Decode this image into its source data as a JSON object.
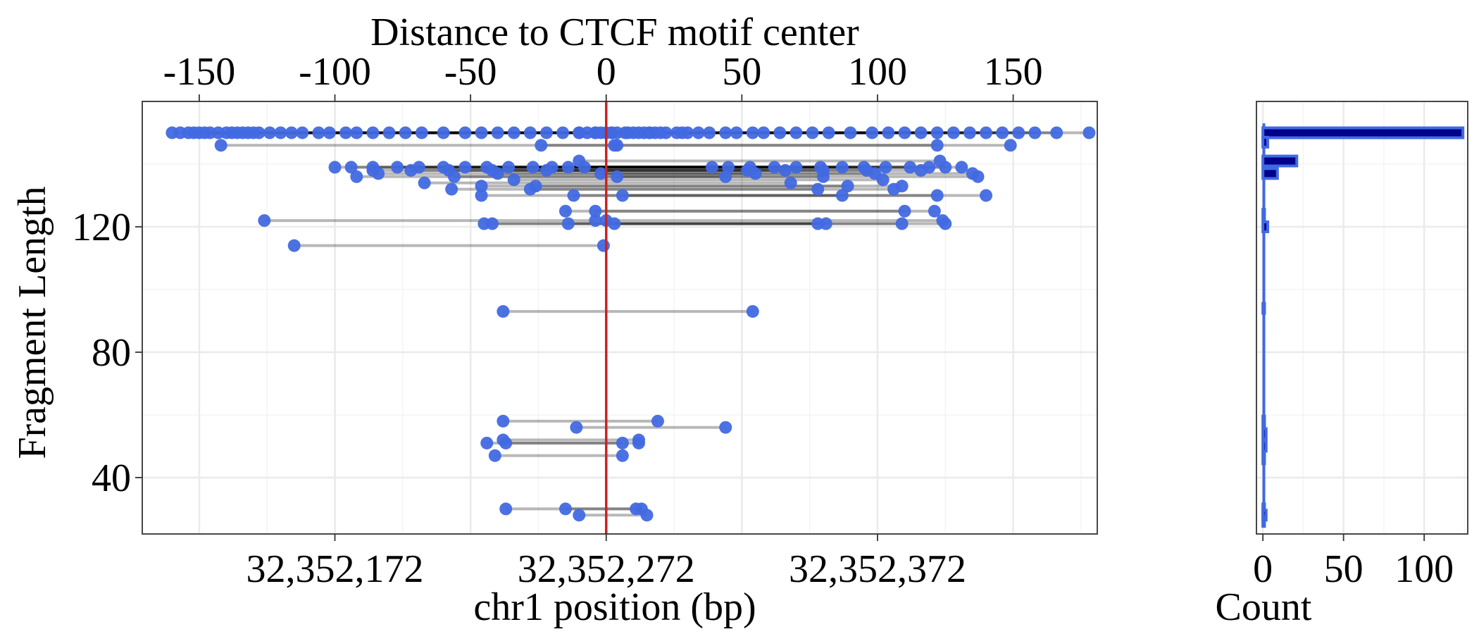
{
  "chart_data": [
    {
      "type": "scatter",
      "top_axis_title": "Distance to CTCF motif center",
      "top_ticks": [
        -150,
        -100,
        -50,
        0,
        50,
        100,
        150
      ],
      "top_tick_labels": [
        "-150",
        "-100",
        "-50",
        "0",
        "50",
        "100",
        "150"
      ],
      "xlabel": "chr1 position (bp)",
      "ylabel": "Fragment Length",
      "x_ticks": [
        32352172,
        32352272,
        32352372
      ],
      "x_tick_labels": [
        "32,352,172",
        "32,352,272",
        "32,352,372"
      ],
      "y_ticks": [
        40,
        80,
        120
      ],
      "y_tick_labels": [
        "40",
        "80",
        "120"
      ],
      "motif_center": 32352272,
      "xlim": [
        32352101,
        32352453
      ],
      "ylim": [
        22,
        160
      ],
      "reference_line_color": "#CC2222",
      "point_color": "#4169E1",
      "grid": true,
      "fragments": [
        [
          32352126,
          32352276,
          150
        ],
        [
          32352129,
          32352279,
          150
        ],
        [
          32352132,
          32352282,
          150
        ],
        [
          32352134,
          32352284,
          150
        ],
        [
          32352136,
          32352286,
          150
        ],
        [
          32352138,
          32352288,
          150
        ],
        [
          32352140,
          32352290,
          150
        ],
        [
          32352142,
          32352292,
          150
        ],
        [
          32352144,
          32352294,
          150
        ],
        [
          32352148,
          32352298,
          150
        ],
        [
          32352152,
          32352302,
          150
        ],
        [
          32352156,
          32352306,
          150
        ],
        [
          32352160,
          32352310,
          150
        ],
        [
          32352166,
          32352316,
          150
        ],
        [
          32352170,
          32352320,
          150
        ],
        [
          32352176,
          32352326,
          150
        ],
        [
          32352180,
          32352330,
          150
        ],
        [
          32352186,
          32352336,
          150
        ],
        [
          32352192,
          32352342,
          150
        ],
        [
          32352198,
          32352348,
          150
        ],
        [
          32352204,
          32352354,
          150
        ],
        [
          32352212,
          32352362,
          150
        ],
        [
          32352220,
          32352370,
          150
        ],
        [
          32352226,
          32352376,
          150
        ],
        [
          32352232,
          32352382,
          150
        ],
        [
          32352238,
          32352388,
          150
        ],
        [
          32352244,
          32352394,
          150
        ],
        [
          32352250,
          32352400,
          150
        ],
        [
          32352256,
          32352406,
          150
        ],
        [
          32352262,
          32352412,
          150
        ],
        [
          32352268,
          32352418,
          150
        ],
        [
          32352274,
          32352424,
          150
        ],
        [
          32352280,
          32352430,
          150
        ],
        [
          32352288,
          32352438,
          150
        ],
        [
          32352300,
          32352450,
          150
        ],
        [
          32352112,
          32352262,
          150
        ],
        [
          32352115,
          32352265,
          150
        ],
        [
          32352118,
          32352268,
          150
        ],
        [
          32352120,
          32352270,
          150
        ],
        [
          32352122,
          32352272,
          150
        ],
        [
          32352124,
          32352274,
          150
        ],
        [
          32352130,
          32352276,
          146
        ],
        [
          32352275,
          32352421,
          146
        ],
        [
          32352248,
          32352394,
          146
        ],
        [
          32352172,
          32352311,
          139
        ],
        [
          32352178,
          32352317,
          139
        ],
        [
          32352186,
          32352325,
          139
        ],
        [
          32352195,
          32352334,
          139
        ],
        [
          32352203,
          32352342,
          139
        ],
        [
          32352212,
          32352351,
          139
        ],
        [
          32352220,
          32352359,
          139
        ],
        [
          32352228,
          32352367,
          139
        ],
        [
          32352236,
          32352375,
          139
        ],
        [
          32352245,
          32352384,
          139
        ],
        [
          32352252,
          32352391,
          139
        ],
        [
          32352258,
          32352397,
          139
        ],
        [
          32352264,
          32352403,
          139
        ],
        [
          32352186,
          32352324,
          138
        ],
        [
          32352200,
          32352338,
          138
        ],
        [
          32352214,
          32352352,
          138
        ],
        [
          32352230,
          32352368,
          138
        ],
        [
          32352250,
          32352388,
          138
        ],
        [
          32352232,
          32352371,
          137
        ],
        [
          32352188,
          32352327,
          137
        ],
        [
          32352180,
          32352316,
          136
        ],
        [
          32352216,
          32352352,
          136
        ],
        [
          32352238,
          32352374,
          135
        ],
        [
          32352205,
          32352340,
          134
        ],
        [
          32352226,
          32352361,
          133
        ],
        [
          32352246,
          32352381,
          133
        ],
        [
          32352215,
          32352350,
          132
        ],
        [
          32352244,
          32352378,
          132
        ],
        [
          32352278,
          32352412,
          130
        ],
        [
          32352260,
          32352394,
          130
        ],
        [
          32352226,
          32352359,
          130
        ],
        [
          32352262,
          32352395,
          141
        ],
        [
          32352270,
          32352407,
          137
        ],
        [
          32352276,
          32352409,
          136
        ],
        [
          32352268,
          32352393,
          125
        ],
        [
          32352257,
          32352382,
          125
        ],
        [
          32352272,
          32352396,
          122
        ],
        [
          32352258,
          32352381,
          121
        ],
        [
          32352227,
          32352350,
          121
        ],
        [
          32352230,
          32352353,
          121
        ],
        [
          32352146,
          32352268,
          122
        ],
        [
          32352275,
          32352397,
          121
        ],
        [
          32352157,
          32352271,
          114
        ],
        [
          32352234,
          32352326,
          93
        ],
        [
          32352234,
          32352291,
          58
        ],
        [
          32352261,
          32352316,
          56
        ],
        [
          32352234,
          32352284,
          52
        ],
        [
          32352228,
          32352278,
          51
        ],
        [
          32352231,
          32352278,
          47
        ],
        [
          32352235,
          32352284,
          51
        ],
        [
          32352235,
          32352285,
          30
        ],
        [
          32352257,
          32352283,
          30
        ],
        [
          32352262,
          32352287,
          28
        ]
      ]
    },
    {
      "type": "bar",
      "orientation": "horizontal",
      "xlabel": "Count",
      "x_ticks": [
        0,
        50,
        100
      ],
      "x_tick_labels": [
        "0",
        "50",
        "100"
      ],
      "xlim": [
        -4,
        127
      ],
      "bin_lengths": [
        150,
        147,
        141,
        137,
        124,
        120,
        94,
        58,
        54,
        50,
        46,
        30,
        28,
        26
      ],
      "counts": [
        124,
        3,
        21,
        9,
        1,
        3,
        1,
        1,
        2,
        2,
        1,
        1,
        2,
        1
      ]
    }
  ]
}
